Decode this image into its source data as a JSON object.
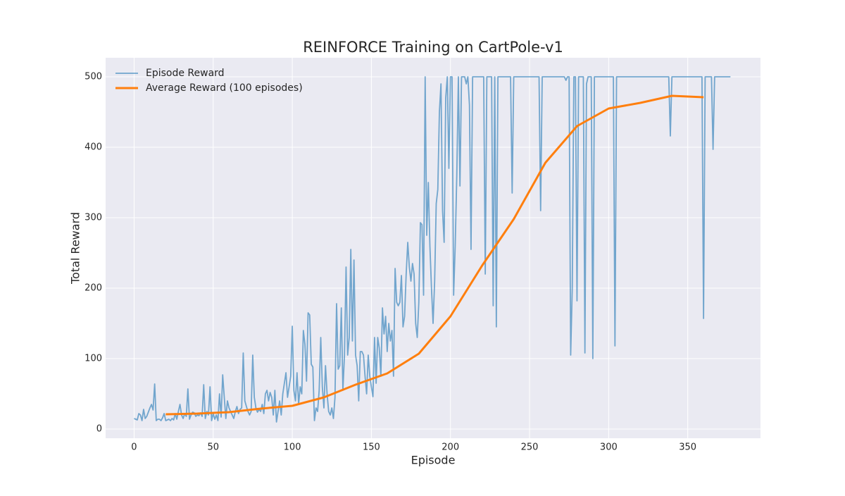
{
  "chart_data": {
    "type": "line",
    "title": "REINFORCE Training on CartPole-v1",
    "xlabel": "Episode",
    "ylabel": "Total Reward",
    "xlim": [
      -18,
      396
    ],
    "ylim": [
      -13,
      527
    ],
    "xticks": [
      0,
      50,
      100,
      150,
      200,
      250,
      300,
      350
    ],
    "yticks": [
      0,
      100,
      200,
      300,
      400,
      500
    ],
    "grid": true,
    "legend": "upper left",
    "series": [
      {
        "name": "Episode Reward",
        "color": "#1f77b4",
        "opacity": 0.6,
        "linewidth": 1.8,
        "x": [
          0,
          1,
          2,
          3,
          4,
          5,
          6,
          7,
          8,
          9,
          10,
          11,
          12,
          13,
          14,
          15,
          16,
          17,
          18,
          19,
          20,
          21,
          22,
          23,
          24,
          25,
          26,
          27,
          28,
          29,
          30,
          31,
          32,
          33,
          34,
          35,
          36,
          37,
          38,
          39,
          40,
          41,
          42,
          43,
          44,
          45,
          46,
          47,
          48,
          49,
          50,
          51,
          52,
          53,
          54,
          55,
          56,
          57,
          58,
          59,
          60,
          61,
          62,
          63,
          64,
          65,
          66,
          67,
          68,
          69,
          70,
          71,
          72,
          73,
          74,
          75,
          76,
          77,
          78,
          79,
          80,
          81,
          82,
          83,
          84,
          85,
          86,
          87,
          88,
          89,
          90,
          91,
          92,
          93,
          94,
          95,
          96,
          97,
          98,
          99,
          100,
          101,
          102,
          103,
          104,
          105,
          106,
          107,
          108,
          109,
          110,
          111,
          112,
          113,
          114,
          115,
          116,
          117,
          118,
          119,
          120,
          121,
          122,
          123,
          124,
          125,
          126,
          127,
          128,
          129,
          130,
          131,
          132,
          133,
          134,
          135,
          136,
          137,
          138,
          139,
          140,
          141,
          142,
          143,
          144,
          145,
          146,
          147,
          148,
          149,
          150,
          151,
          152,
          153,
          154,
          155,
          156,
          157,
          158,
          159,
          160,
          161,
          162,
          163,
          164,
          165,
          166,
          167,
          168,
          169,
          170,
          171,
          172,
          173,
          174,
          175,
          176,
          177,
          178,
          179,
          180,
          181,
          182,
          183,
          184,
          185,
          186,
          187,
          188,
          189,
          190,
          191,
          192,
          193,
          194,
          195,
          196,
          197,
          198,
          199,
          200,
          201,
          202,
          203,
          204,
          205,
          206,
          207,
          208,
          209,
          210,
          211,
          212,
          213,
          214,
          215,
          216,
          217,
          218,
          219,
          220,
          221,
          222,
          223,
          224,
          225,
          226,
          227,
          228,
          229,
          230,
          231,
          232,
          233,
          234,
          235,
          236,
          237,
          238,
          239,
          240,
          241,
          242,
          243,
          244,
          245,
          246,
          247,
          248,
          249,
          250,
          251,
          252,
          253,
          254,
          255,
          256,
          257,
          258,
          259,
          260,
          261,
          262,
          263,
          264,
          265,
          266,
          267,
          268,
          269,
          270,
          271,
          272,
          273,
          274,
          275,
          276,
          277,
          278,
          279,
          280,
          281,
          282,
          283,
          284,
          285,
          286,
          287,
          288,
          289,
          290,
          291,
          292,
          293,
          294,
          295,
          296,
          297,
          298,
          299,
          300,
          301,
          302,
          303,
          304,
          305,
          306,
          307,
          308,
          309,
          310,
          311,
          312,
          313,
          314,
          315,
          316,
          317,
          318,
          319,
          320,
          321,
          322,
          323,
          324,
          325,
          326,
          327,
          328,
          329,
          330,
          331,
          332,
          333,
          334,
          335,
          336,
          337,
          338,
          339,
          340,
          341,
          342,
          343,
          344,
          345,
          346,
          347,
          348,
          349,
          350,
          351,
          352,
          353,
          354,
          355,
          356,
          357,
          358,
          359,
          360,
          361,
          362,
          363,
          364,
          365,
          366,
          367,
          368,
          369,
          370,
          371,
          372,
          373,
          374,
          375,
          376,
          377
        ],
        "values": [
          15,
          14,
          13,
          22,
          20,
          12,
          28,
          15,
          18,
          24,
          30,
          35,
          27,
          64,
          12,
          14,
          14,
          12,
          16,
          22,
          12,
          13,
          14,
          12,
          15,
          13,
          22,
          14,
          25,
          35,
          20,
          15,
          22,
          18,
          57,
          14,
          20,
          24,
          23,
          18,
          20,
          19,
          23,
          18,
          63,
          15,
          25,
          20,
          60,
          12,
          22,
          14,
          20,
          12,
          50,
          17,
          77,
          45,
          15,
          40,
          30,
          25,
          20,
          15,
          25,
          32,
          22,
          28,
          30,
          108,
          40,
          32,
          25,
          20,
          25,
          105,
          45,
          30,
          24,
          28,
          25,
          35,
          22,
          50,
          55,
          40,
          52,
          45,
          20,
          55,
          10,
          25,
          40,
          20,
          50,
          65,
          80,
          45,
          60,
          75,
          146,
          55,
          40,
          80,
          35,
          60,
          50,
          140,
          120,
          68,
          165,
          162,
          92,
          88,
          12,
          30,
          25,
          55,
          130,
          60,
          30,
          90,
          50,
          25,
          20,
          30,
          15,
          45,
          178,
          85,
          90,
          172,
          55,
          105,
          230,
          105,
          130,
          255,
          125,
          240,
          105,
          90,
          40,
          110,
          110,
          105,
          75,
          50,
          105,
          75,
          60,
          46,
          130,
          65,
          130,
          115,
          75,
          172,
          135,
          160,
          110,
          150,
          125,
          140,
          75,
          228,
          180,
          175,
          180,
          218,
          145,
          160,
          220,
          265,
          230,
          210,
          235,
          220,
          150,
          130,
          180,
          293,
          290,
          190,
          500,
          275,
          350,
          260,
          200,
          150,
          210,
          320,
          340,
          450,
          490,
          310,
          265,
          470,
          500,
          370,
          500,
          500,
          190,
          260,
          360,
          500,
          345,
          500,
          500,
          500,
          490,
          500,
          460,
          255,
          500,
          500,
          500,
          500,
          500,
          500,
          500,
          500,
          220,
          500,
          500,
          500,
          500,
          175,
          500,
          145,
          500,
          500,
          500,
          500,
          500,
          500,
          500,
          500,
          500,
          335,
          500,
          500,
          500,
          500,
          500,
          500,
          500,
          500,
          500,
          500,
          500,
          500,
          500,
          500,
          500,
          500,
          500,
          310,
          500,
          500,
          500,
          500,
          500,
          500,
          500,
          500,
          500,
          500,
          500,
          500,
          500,
          500,
          500,
          495,
          500,
          500,
          105,
          200,
          500,
          500,
          182,
          500,
          500,
          500,
          500,
          108,
          490,
          500,
          500,
          500,
          100,
          500,
          500,
          500,
          500,
          500,
          500,
          500,
          500,
          500,
          500,
          500,
          500,
          500,
          118,
          500,
          500,
          500,
          500,
          500,
          500,
          500,
          500,
          500,
          500,
          500,
          500,
          500,
          500,
          500,
          500,
          500,
          500,
          500,
          500,
          500,
          500,
          500,
          500,
          500,
          500,
          500,
          500,
          500,
          500,
          500,
          500,
          500,
          500,
          416,
          500,
          500,
          500,
          500,
          500,
          500,
          500,
          500,
          500,
          500,
          500,
          500,
          500,
          500,
          500,
          500,
          500,
          500,
          500,
          500,
          157,
          500,
          500,
          500,
          500,
          500,
          397,
          500,
          500,
          500,
          500,
          500,
          500,
          500,
          500,
          500,
          500,
          500
        ]
      },
      {
        "name": "Average Reward (100 episodes)",
        "color": "#ff7f0e",
        "opacity": 1,
        "linewidth": 3,
        "x": [
          20,
          40,
          60,
          80,
          100,
          120,
          140,
          160,
          180,
          200,
          220,
          240,
          260,
          280,
          300,
          320,
          340,
          360
        ],
        "values": [
          21,
          22,
          24,
          29,
          33,
          45,
          63,
          79,
          107,
          160,
          232,
          298,
          378,
          430,
          455,
          463,
          473,
          471
        ]
      }
    ]
  }
}
